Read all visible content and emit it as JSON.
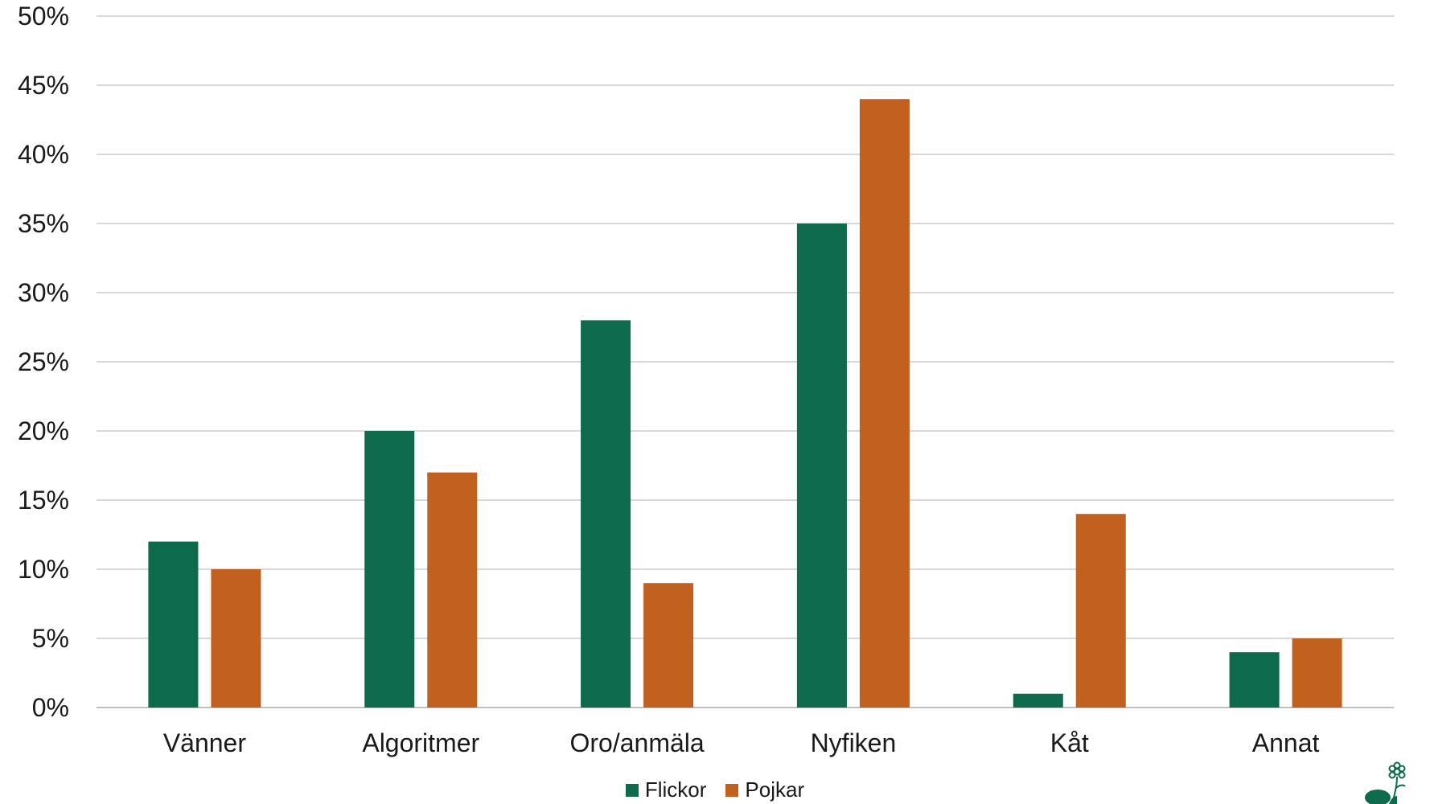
{
  "chart_data": {
    "type": "bar",
    "categories": [
      "Vänner",
      "Algoritmer",
      "Oro/anmäla",
      "Nyfiken",
      "Kåt",
      "Annat"
    ],
    "series": [
      {
        "name": "Flickor",
        "color": "#0e6a4c",
        "values": [
          12,
          20,
          28,
          35,
          1,
          4
        ]
      },
      {
        "name": "Pojkar",
        "color": "#c1601f",
        "values": [
          10,
          17,
          9,
          44,
          14,
          5
        ]
      }
    ],
    "ylim": [
      0,
      50
    ],
    "yticks": [
      0,
      5,
      10,
      15,
      20,
      25,
      30,
      35,
      40,
      45,
      50
    ],
    "ytick_labels": [
      "0%",
      "5%",
      "10%",
      "15%",
      "20%",
      "25%",
      "30%",
      "35%",
      "40%",
      "45%",
      "50%"
    ],
    "grid": true,
    "grid_color": "#d9d9d9",
    "legend_position": "bottom-center",
    "title": "",
    "xlabel": "",
    "ylabel": ""
  },
  "logo": {
    "icon": "flower-logo-icon",
    "color": "#0e6a4c"
  }
}
